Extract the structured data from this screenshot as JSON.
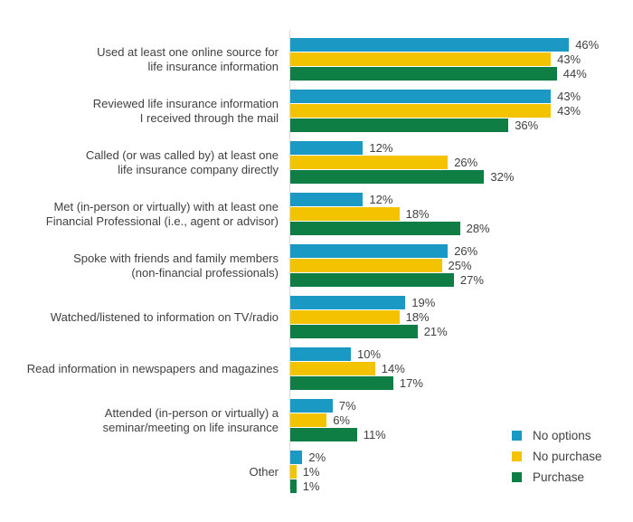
{
  "chart_data": {
    "type": "bar",
    "orientation": "horizontal",
    "title": "",
    "xlabel": "",
    "ylabel": "",
    "xlim": [
      0,
      50
    ],
    "grid": false,
    "legend_position": "bottom-right",
    "value_suffix": "%",
    "series": [
      {
        "name": "No options",
        "color": "#1999c4"
      },
      {
        "name": "No purchase",
        "color": "#f3c300"
      },
      {
        "name": "Purchase",
        "color": "#0e7e45"
      }
    ],
    "categories": [
      {
        "label_lines": [
          "Used at least one online source for",
          "life insurance information"
        ],
        "values": [
          46,
          43,
          44
        ]
      },
      {
        "label_lines": [
          "Reviewed life insurance information",
          "I received through the mail"
        ],
        "values": [
          43,
          43,
          36
        ]
      },
      {
        "label_lines": [
          "Called (or was called by) at least one",
          "life insurance company directly"
        ],
        "values": [
          12,
          26,
          32
        ]
      },
      {
        "label_lines": [
          "Met (in-person or virtually) with at least one",
          "Financial Professional (i.e., agent or advisor)"
        ],
        "values": [
          12,
          18,
          28
        ]
      },
      {
        "label_lines": [
          "Spoke with friends and family members",
          "(non-financial professionals)"
        ],
        "values": [
          26,
          25,
          27
        ]
      },
      {
        "label_lines": [
          "Watched/listened to information on TV/radio"
        ],
        "values": [
          19,
          18,
          21
        ]
      },
      {
        "label_lines": [
          "Read information in newspapers and magazines"
        ],
        "values": [
          10,
          14,
          17
        ]
      },
      {
        "label_lines": [
          "Attended (in-person or virtually) a",
          "seminar/meeting on life insurance"
        ],
        "values": [
          7,
          6,
          11
        ]
      },
      {
        "label_lines": [
          "Other"
        ],
        "values": [
          2,
          1,
          1
        ]
      }
    ]
  },
  "colors": {
    "text": "#414042",
    "axis_line": "#d9d9d9",
    "background": "#ffffff"
  }
}
